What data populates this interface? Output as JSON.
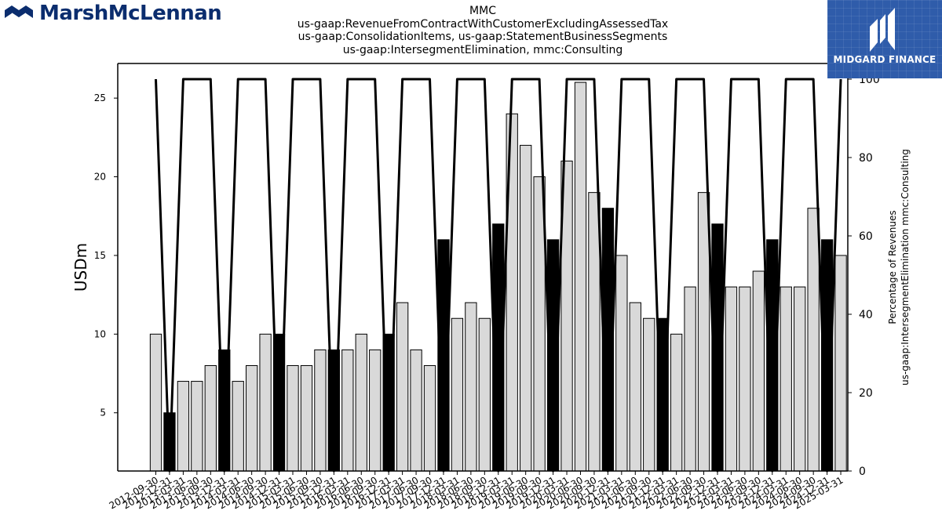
{
  "header": {
    "brand_left": "MarshMcLennan",
    "brand_right": "MIDGARD FINANCE",
    "title_lines": [
      "MMC",
      "us-gaap:RevenueFromContractWithCustomerExcludingAssessedTax",
      "us-gaap:ConsolidationItems, us-gaap:StatementBusinessSegments",
      "us-gaap:IntersegmentElimination, mmc:Consulting"
    ]
  },
  "chart_data": {
    "type": "bar",
    "ylabel": "USDm",
    "y2label_lines": [
      "Percentage of Revenues",
      "us-gaap:IntersegmentElimination mmc:Consulting"
    ],
    "ylim": [
      1.3,
      27.2
    ],
    "y2lim": [
      0,
      104
    ],
    "yticks": [
      5,
      10,
      15,
      20,
      25
    ],
    "y2ticks": [
      0,
      20,
      40,
      60,
      80,
      100
    ],
    "grid": false,
    "categories": [
      "2012-09-30",
      "2012-12-31",
      "2013-03-31",
      "2013-06-30",
      "2013-09-30",
      "2013-12-31",
      "2014-03-31",
      "2014-06-30",
      "2014-09-30",
      "2014-12-31",
      "2015-03-31",
      "2015-06-30",
      "2015-09-30",
      "2015-12-31",
      "2016-03-31",
      "2016-06-30",
      "2016-09-30",
      "2016-12-31",
      "2017-03-31",
      "2017-06-30",
      "2017-09-30",
      "2017-12-31",
      "2018-03-31",
      "2018-06-30",
      "2018-09-30",
      "2018-12-31",
      "2019-03-31",
      "2019-06-30",
      "2019-09-30",
      "2019-12-31",
      "2020-03-31",
      "2020-06-30",
      "2020-09-30",
      "2020-12-31",
      "2021-03-31",
      "2021-06-30",
      "2021-09-30",
      "2021-12-31",
      "2022-03-31",
      "2022-06-30",
      "2022-09-30",
      "2022-12-31",
      "2023-03-31",
      "2023-06-30",
      "2023-09-30",
      "2023-12-31",
      "2024-03-31",
      "2024-06-30",
      "2024-09-30",
      "2024-12-31",
      "2025-03-31"
    ],
    "values": [
      10,
      5,
      7,
      7,
      8,
      9,
      7,
      8,
      10,
      10,
      8,
      8,
      9,
      9,
      9,
      10,
      9,
      10,
      12,
      9,
      8,
      16,
      11,
      12,
      11,
      17,
      24,
      22,
      20,
      16,
      21,
      26,
      19,
      18,
      15,
      12,
      11,
      11,
      10,
      13,
      19,
      17,
      13,
      13,
      14,
      16,
      13,
      13,
      18,
      16,
      15
    ],
    "bar_colors": [
      "#d9d9d9",
      "#000000",
      "#d9d9d9",
      "#d9d9d9",
      "#d9d9d9",
      "#000000",
      "#d9d9d9",
      "#d9d9d9",
      "#d9d9d9",
      "#000000",
      "#d9d9d9",
      "#d9d9d9",
      "#d9d9d9",
      "#000000",
      "#d9d9d9",
      "#d9d9d9",
      "#d9d9d9",
      "#000000",
      "#d9d9d9",
      "#d9d9d9",
      "#d9d9d9",
      "#000000",
      "#d9d9d9",
      "#d9d9d9",
      "#d9d9d9",
      "#000000",
      "#d9d9d9",
      "#d9d9d9",
      "#d9d9d9",
      "#000000",
      "#d9d9d9",
      "#d9d9d9",
      "#d9d9d9",
      "#000000",
      "#d9d9d9",
      "#d9d9d9",
      "#d9d9d9",
      "#000000",
      "#d9d9d9",
      "#d9d9d9",
      "#d9d9d9",
      "#000000",
      "#d9d9d9",
      "#d9d9d9",
      "#d9d9d9",
      "#000000",
      "#d9d9d9",
      "#d9d9d9",
      "#d9d9d9",
      "#000000",
      "#d9d9d9"
    ],
    "line_values": [
      100,
      0,
      100,
      100,
      100,
      0,
      100,
      100,
      100,
      0,
      100,
      100,
      100,
      0,
      100,
      100,
      100,
      0,
      100,
      100,
      100,
      0,
      100,
      100,
      100,
      0,
      100,
      100,
      100,
      0,
      100,
      100,
      100,
      0,
      100,
      100,
      100,
      0,
      100,
      100,
      100,
      0,
      100,
      100,
      100,
      0,
      100,
      100,
      100,
      0,
      100
    ],
    "line_color": "#000000"
  }
}
